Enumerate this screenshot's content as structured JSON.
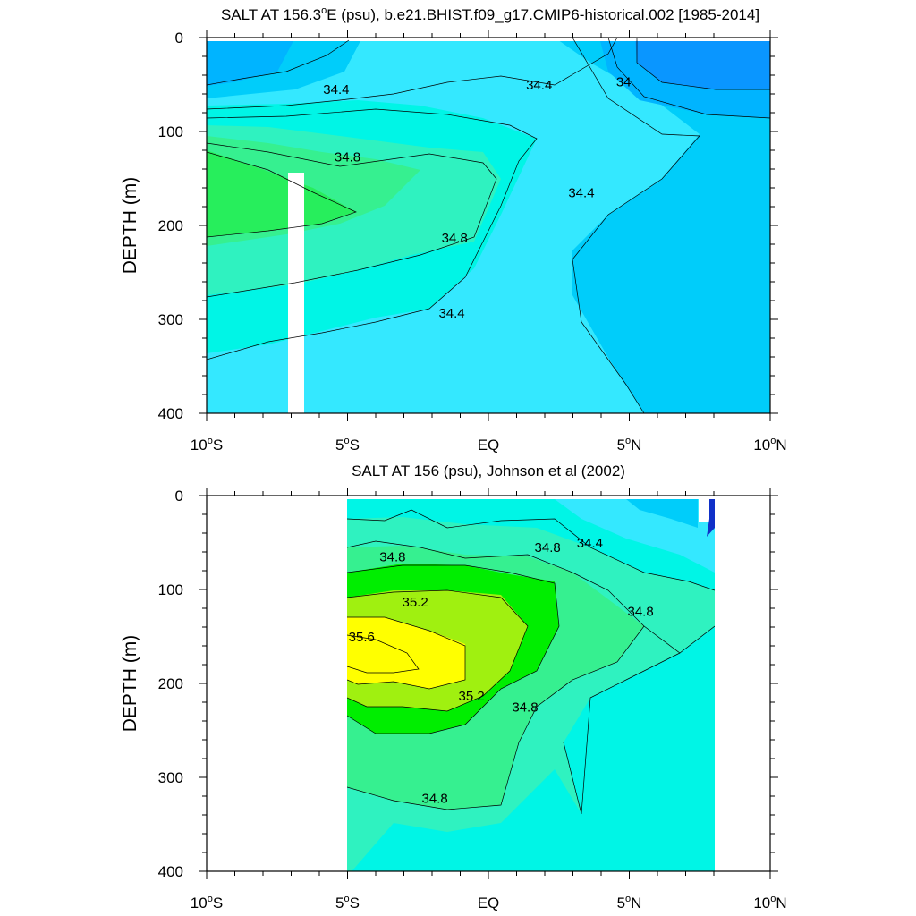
{
  "chart_data": [
    {
      "type": "contour",
      "title": "SALT AT 156.3°E (psu), b.e21.BHIST.f09_g17.CMIP6-historical.002 [1985-2014]",
      "title_parts": [
        "SALT AT 156.3",
        "o",
        "E (psu), b.e21.BHIST.f09_g17.CMIP6-historical.002 [1985-2014]"
      ],
      "xlabel": "",
      "ylabel": "DEPTH (m)",
      "xlim": [
        -10,
        10
      ],
      "ylim": [
        0,
        400
      ],
      "y_reversed": true,
      "x_ticks": [
        {
          "value": -10,
          "num": "10",
          "sup": "o",
          "hemi": "S"
        },
        {
          "value": -5,
          "num": "5",
          "sup": "o",
          "hemi": "S"
        },
        {
          "value": 0,
          "num": "EQ",
          "sup": "",
          "hemi": ""
        },
        {
          "value": 5,
          "num": "5",
          "sup": "o",
          "hemi": "N"
        },
        {
          "value": 10,
          "num": "10",
          "sup": "o",
          "hemi": "N"
        }
      ],
      "y_ticks": [
        0,
        100,
        200,
        300,
        400
      ],
      "data_x_range": [
        -10,
        10
      ],
      "contour_labels": [
        {
          "text": "34.4",
          "x": -5.4,
          "y": 60
        },
        {
          "text": "34.4",
          "x": 1.8,
          "y": 55
        },
        {
          "text": "34",
          "x": 4.8,
          "y": 52
        },
        {
          "text": "34.8",
          "x": -5.0,
          "y": 132
        },
        {
          "text": "34.4",
          "x": 3.3,
          "y": 170
        },
        {
          "text": "34.8",
          "x": -1.2,
          "y": 218
        },
        {
          "text": "34.4",
          "x": -1.3,
          "y": 298
        }
      ],
      "salinity_zones": [
        {
          "level": "33.8-34.0",
          "color": "#0a96ff"
        },
        {
          "level": "34.0-34.2",
          "color": "#00b4ff"
        },
        {
          "level": "34.2-34.4",
          "color": "#00cdfa"
        },
        {
          "level": "34.4-34.6",
          "color": "#34e8ff"
        },
        {
          "level": "34.6-34.8",
          "color": "#00f5e6"
        },
        {
          "level": "34.8-35.0",
          "color": "#2ff2c0"
        },
        {
          "level": "35.0-35.2",
          "color": "#36f090"
        },
        {
          "level": "35.2-35.4",
          "color": "#27ee5c"
        }
      ]
    },
    {
      "type": "contour",
      "title": "SALT AT 156 (psu), Johnson et al (2002)",
      "xlabel": "",
      "ylabel": "DEPTH (m)",
      "xlim": [
        -10,
        10
      ],
      "ylim": [
        0,
        400
      ],
      "y_reversed": true,
      "x_ticks": [
        {
          "value": -10,
          "num": "10",
          "sup": "o",
          "hemi": "S"
        },
        {
          "value": -5,
          "num": "5",
          "sup": "o",
          "hemi": "S"
        },
        {
          "value": 0,
          "num": "EQ",
          "sup": "",
          "hemi": ""
        },
        {
          "value": 5,
          "num": "5",
          "sup": "o",
          "hemi": "N"
        },
        {
          "value": 10,
          "num": "10",
          "sup": "o",
          "hemi": "N"
        }
      ],
      "y_ticks": [
        0,
        100,
        200,
        300,
        400
      ],
      "data_x_range": [
        -5,
        8
      ],
      "contour_labels": [
        {
          "text": "34.8",
          "x": -3.4,
          "y": 70
        },
        {
          "text": "34.8",
          "x": 2.1,
          "y": 60
        },
        {
          "text": "34.4",
          "x": 3.6,
          "y": 55
        },
        {
          "text": "35.2",
          "x": -2.6,
          "y": 118
        },
        {
          "text": "34.8",
          "x": 5.4,
          "y": 128
        },
        {
          "text": "35.6",
          "x": -4.5,
          "y": 155
        },
        {
          "text": "35.2",
          "x": -0.6,
          "y": 218
        },
        {
          "text": "34.8",
          "x": 1.3,
          "y": 230
        },
        {
          "text": "34.8",
          "x": -1.9,
          "y": 327
        }
      ],
      "salinity_zones": [
        {
          "level": "34.0-34.2",
          "color": "#00b4ff"
        },
        {
          "level": "34.2-34.4",
          "color": "#00cdfa"
        },
        {
          "level": "34.4-34.6",
          "color": "#34e8ff"
        },
        {
          "level": "34.6-34.8",
          "color": "#00f5e6"
        },
        {
          "level": "34.8-35.0",
          "color": "#2ff2c0"
        },
        {
          "level": "35.0-35.2",
          "color": "#36f090"
        },
        {
          "level": "35.2-35.4",
          "color": "#00ee00"
        },
        {
          "level": "35.4-35.6",
          "color": "#a0f010"
        },
        {
          "level": "35.6-35.8",
          "color": "#ffff00"
        }
      ]
    }
  ]
}
